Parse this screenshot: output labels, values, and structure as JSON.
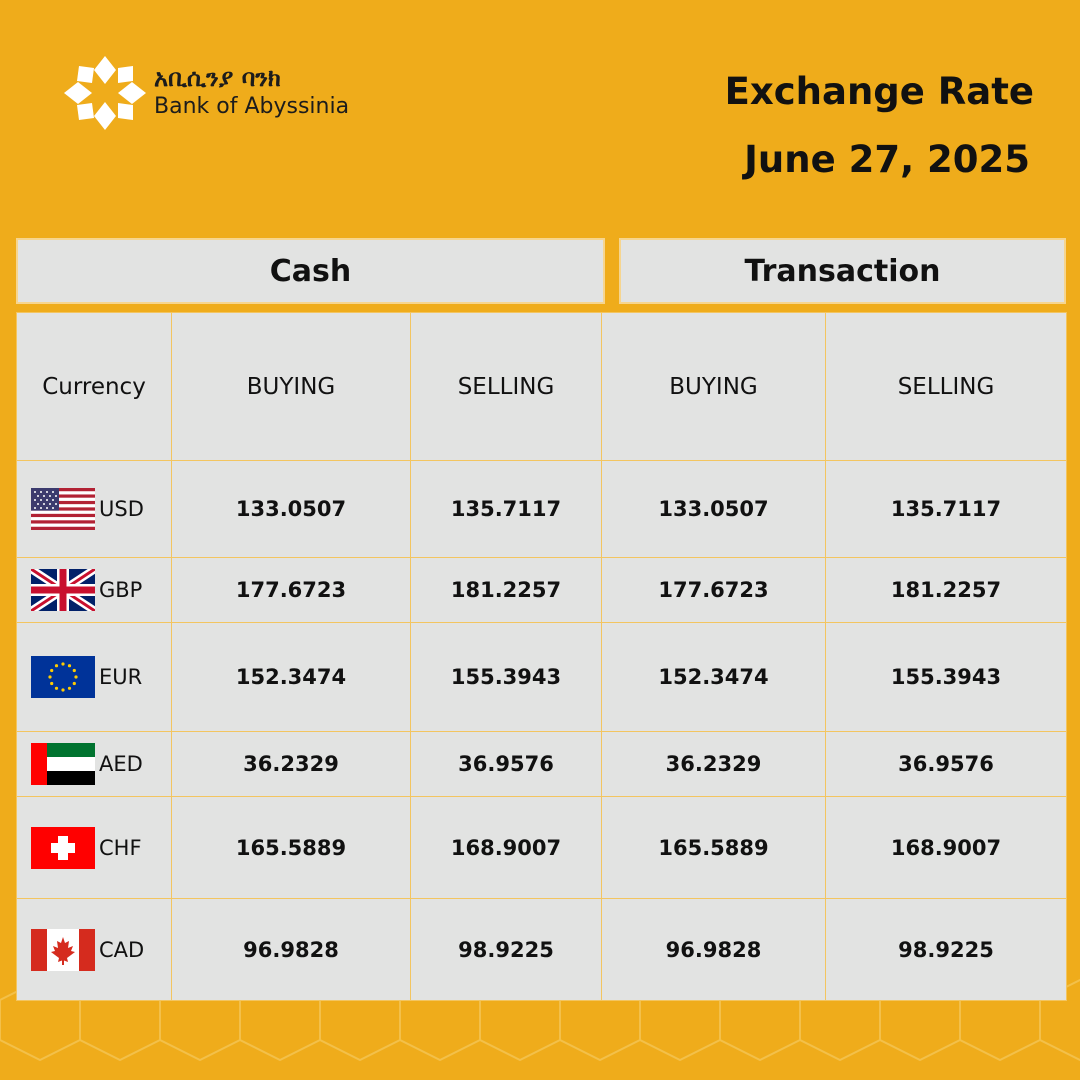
{
  "brand": {
    "name_amharic": "አቢሲንያ ባንክ",
    "name_english": "Bank of Abyssinia"
  },
  "header": {
    "title": "Exchange Rate",
    "date": "June 27, 2025"
  },
  "groups": {
    "cash": "Cash",
    "transaction": "Transaction"
  },
  "columns": {
    "currency": "Currency",
    "cash_buying": "BUYING",
    "cash_selling": "SELLING",
    "trans_buying": "BUYING",
    "trans_selling": "SELLING"
  },
  "rows": [
    {
      "code": "USD",
      "flag": "us-flag-icon",
      "cash_buying": "133.0507",
      "cash_selling": "135.7117",
      "trans_buying": "133.0507",
      "trans_selling": "135.7117"
    },
    {
      "code": "GBP",
      "flag": "uk-flag-icon",
      "cash_buying": "177.6723",
      "cash_selling": "181.2257",
      "trans_buying": "177.6723",
      "trans_selling": "181.2257"
    },
    {
      "code": "EUR",
      "flag": "eu-flag-icon",
      "cash_buying": "152.3474",
      "cash_selling": "155.3943",
      "trans_buying": "152.3474",
      "trans_selling": "155.3943"
    },
    {
      "code": "AED",
      "flag": "uae-flag-icon",
      "cash_buying": "36.2329",
      "cash_selling": "36.9576",
      "trans_buying": "36.2329",
      "trans_selling": "36.9576"
    },
    {
      "code": "CHF",
      "flag": "swiss-flag-icon",
      "cash_buying": "165.5889",
      "cash_selling": "168.9007",
      "trans_buying": "165.5889",
      "trans_selling": "168.9007"
    },
    {
      "code": "CAD",
      "flag": "canada-flag-icon",
      "cash_buying": "96.9828",
      "cash_selling": "98.9225",
      "trans_buying": "96.9828",
      "trans_selling": "98.9225"
    }
  ],
  "colors": {
    "background": "#efac1b",
    "table_bg": "#e2e3e2",
    "grid_line": "#f3c560",
    "text": "#111111",
    "logo": "#ffffff"
  }
}
